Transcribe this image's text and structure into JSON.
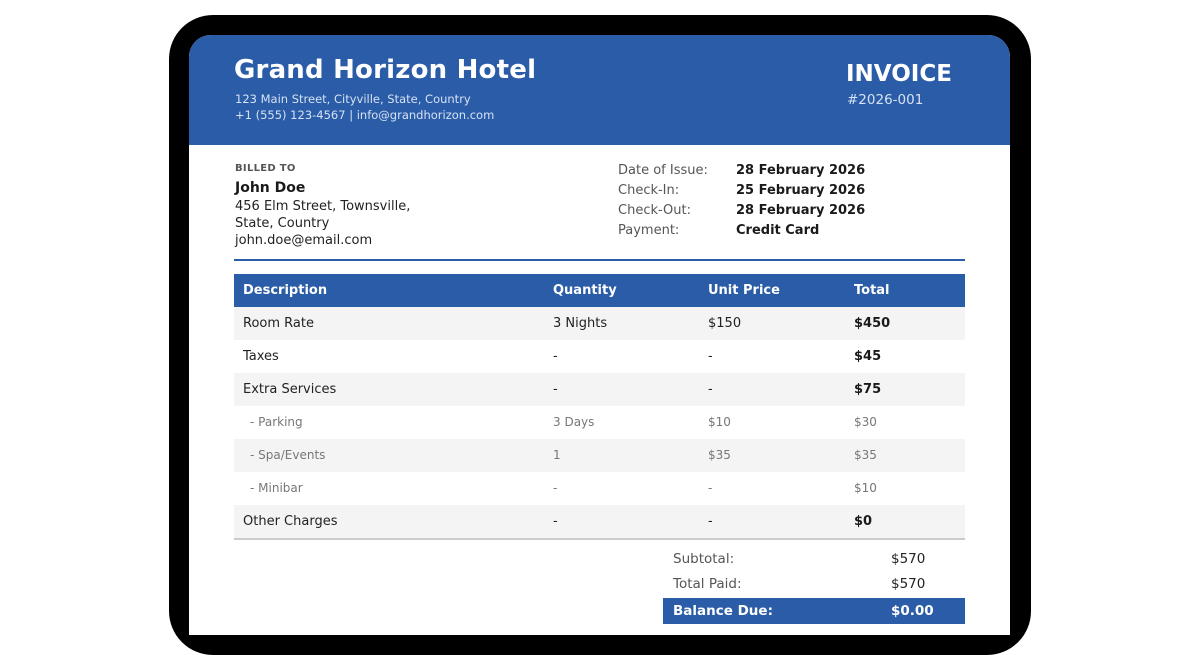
{
  "hotel": {
    "name": "Grand Horizon Hotel",
    "address": "123 Main Street, Cityville, State, Country",
    "contact": "+1 (555) 123-4567   |   info@grandhorizon.com"
  },
  "invoice": {
    "title": "INVOICE",
    "number": "#2026-001"
  },
  "billed_to": {
    "label": "BILLED TO",
    "name": "John Doe",
    "address_line1": "456 Elm Street, Townsville,",
    "address_line2": "State, Country",
    "email": "john.doe@email.com"
  },
  "meta": [
    {
      "label": "Date of Issue:",
      "value": "28 February 2026"
    },
    {
      "label": "Check-In:",
      "value": "25 February 2026"
    },
    {
      "label": "Check-Out:",
      "value": "28 February 2026"
    },
    {
      "label": "Payment:",
      "value": "Credit Card"
    }
  ],
  "table": {
    "headers": [
      "Description",
      "Quantity",
      "Unit Price",
      "Total"
    ],
    "rows": [
      [
        "Room Rate",
        "3 Nights",
        "$150",
        "$450"
      ],
      [
        "Taxes",
        "-",
        "-",
        "$45"
      ],
      [
        "Extra Services",
        "-",
        "-",
        "$75"
      ],
      [
        "- Parking",
        "3 Days",
        "$10",
        "$30"
      ],
      [
        "- Spa/Events",
        "1",
        "$35",
        "$35"
      ],
      [
        "- Minibar",
        "-",
        "-",
        "$10"
      ],
      [
        "Other Charges",
        "-",
        "-",
        "$0"
      ]
    ]
  },
  "summary": {
    "subtotal_label": "Subtotal:",
    "subtotal_value": "$570",
    "paid_label": "Total Paid:",
    "paid_value": "$570",
    "balance_label": "Balance Due:",
    "balance_value": "$0.00"
  },
  "colors": {
    "accent": "#2a5ca8",
    "row_alt": "#f4f4f4",
    "frame": "#000000"
  }
}
